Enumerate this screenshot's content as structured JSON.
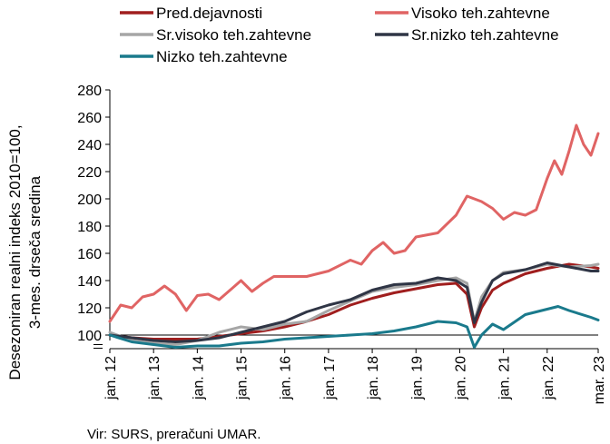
{
  "chart_data": {
    "type": "line",
    "ylabel_line1": "Desezoniran realni indeks 2010=100,",
    "ylabel_line2": "3-mes. drseča sredina",
    "source": "Vir: SURS, preračuni UMAR.",
    "ylim": [
      90,
      280
    ],
    "yticks": [
      "100",
      "120",
      "140",
      "160",
      "180",
      "200",
      "220",
      "240",
      "260",
      "280"
    ],
    "ytick_values": [
      100,
      120,
      140,
      160,
      180,
      200,
      220,
      240,
      260,
      280
    ],
    "xlim": [
      "2012-01",
      "2023-03"
    ],
    "xticks": [
      "jan. 12",
      "jan. 13",
      "jan. 14",
      "jan. 15",
      "jan. 16",
      "jan. 17",
      "jan. 18",
      "jan. 19",
      "jan. 20",
      "jan. 21",
      "jan. 22",
      "mar. 23"
    ],
    "xtick_dates": [
      "2012-01",
      "2013-01",
      "2014-01",
      "2015-01",
      "2016-01",
      "2017-01",
      "2018-01",
      "2019-01",
      "2020-01",
      "2021-01",
      "2022-01",
      "2023-03"
    ],
    "reference_line": 100,
    "axis_break": true,
    "series": [
      {
        "name": "Pred.dejavnosti",
        "color": "#a01e1e",
        "points": [
          [
            "2012-01",
            100
          ],
          [
            "2012-07",
            98
          ],
          [
            "2013-01",
            97
          ],
          [
            "2013-07",
            97
          ],
          [
            "2014-01",
            97
          ],
          [
            "2014-07",
            99
          ],
          [
            "2015-01",
            101
          ],
          [
            "2015-07",
            103
          ],
          [
            "2016-01",
            106
          ],
          [
            "2016-07",
            110
          ],
          [
            "2017-01",
            115
          ],
          [
            "2017-07",
            122
          ],
          [
            "2018-01",
            127
          ],
          [
            "2018-07",
            131
          ],
          [
            "2019-01",
            134
          ],
          [
            "2019-07",
            137
          ],
          [
            "2019-12",
            138
          ],
          [
            "2020-03",
            130
          ],
          [
            "2020-05",
            106
          ],
          [
            "2020-07",
            120
          ],
          [
            "2020-10",
            133
          ],
          [
            "2021-01",
            138
          ],
          [
            "2021-07",
            145
          ],
          [
            "2022-01",
            149
          ],
          [
            "2022-07",
            152
          ],
          [
            "2023-01",
            150
          ],
          [
            "2023-03",
            149
          ]
        ]
      },
      {
        "name": "Visoko teh.zahtevne",
        "color": "#e06464",
        "points": [
          [
            "2012-01",
            110
          ],
          [
            "2012-04",
            122
          ],
          [
            "2012-07",
            120
          ],
          [
            "2012-10",
            128
          ],
          [
            "2013-01",
            130
          ],
          [
            "2013-04",
            136
          ],
          [
            "2013-07",
            130
          ],
          [
            "2013-10",
            118
          ],
          [
            "2014-01",
            129
          ],
          [
            "2014-04",
            130
          ],
          [
            "2014-07",
            126
          ],
          [
            "2014-10",
            133
          ],
          [
            "2015-01",
            140
          ],
          [
            "2015-04",
            132
          ],
          [
            "2015-07",
            138
          ],
          [
            "2015-10",
            143
          ],
          [
            "2016-01",
            143
          ],
          [
            "2016-07",
            143
          ],
          [
            "2017-01",
            147
          ],
          [
            "2017-07",
            155
          ],
          [
            "2017-10",
            152
          ],
          [
            "2018-01",
            162
          ],
          [
            "2018-04",
            168
          ],
          [
            "2018-07",
            160
          ],
          [
            "2018-10",
            162
          ],
          [
            "2019-01",
            172
          ],
          [
            "2019-07",
            175
          ],
          [
            "2019-12",
            188
          ],
          [
            "2020-03",
            202
          ],
          [
            "2020-07",
            198
          ],
          [
            "2020-10",
            193
          ],
          [
            "2021-01",
            185
          ],
          [
            "2021-04",
            190
          ],
          [
            "2021-07",
            188
          ],
          [
            "2021-10",
            192
          ],
          [
            "2022-01",
            215
          ],
          [
            "2022-03",
            228
          ],
          [
            "2022-05",
            218
          ],
          [
            "2022-07",
            235
          ],
          [
            "2022-09",
            254
          ],
          [
            "2022-11",
            240
          ],
          [
            "2023-01",
            232
          ],
          [
            "2023-03",
            248
          ]
        ]
      },
      {
        "name": "Sr.visoko teh.zahtevne",
        "color": "#a6a6a6",
        "points": [
          [
            "2012-01",
            102
          ],
          [
            "2012-07",
            96
          ],
          [
            "2013-01",
            94
          ],
          [
            "2013-07",
            93
          ],
          [
            "2014-01",
            96
          ],
          [
            "2014-07",
            102
          ],
          [
            "2015-01",
            106
          ],
          [
            "2015-07",
            104
          ],
          [
            "2016-01",
            108
          ],
          [
            "2016-07",
            110
          ],
          [
            "2017-01",
            118
          ],
          [
            "2017-07",
            125
          ],
          [
            "2018-01",
            132
          ],
          [
            "2018-07",
            135
          ],
          [
            "2019-01",
            137
          ],
          [
            "2019-07",
            140
          ],
          [
            "2019-12",
            142
          ],
          [
            "2020-03",
            138
          ],
          [
            "2020-05",
            110
          ],
          [
            "2020-07",
            128
          ],
          [
            "2020-10",
            140
          ],
          [
            "2021-01",
            146
          ],
          [
            "2021-07",
            148
          ],
          [
            "2022-01",
            152
          ],
          [
            "2022-07",
            150
          ],
          [
            "2023-01",
            151
          ],
          [
            "2023-03",
            152
          ]
        ]
      },
      {
        "name": "Sr.nizko teh.zahtevne",
        "color": "#2f3545",
        "points": [
          [
            "2012-01",
            100
          ],
          [
            "2012-07",
            98
          ],
          [
            "2013-01",
            96
          ],
          [
            "2013-07",
            95
          ],
          [
            "2014-01",
            96
          ],
          [
            "2014-07",
            98
          ],
          [
            "2015-01",
            102
          ],
          [
            "2015-07",
            106
          ],
          [
            "2016-01",
            110
          ],
          [
            "2016-07",
            117
          ],
          [
            "2017-01",
            122
          ],
          [
            "2017-07",
            126
          ],
          [
            "2018-01",
            133
          ],
          [
            "2018-07",
            137
          ],
          [
            "2019-01",
            138
          ],
          [
            "2019-07",
            142
          ],
          [
            "2019-12",
            140
          ],
          [
            "2020-03",
            135
          ],
          [
            "2020-05",
            109
          ],
          [
            "2020-07",
            124
          ],
          [
            "2020-10",
            140
          ],
          [
            "2021-01",
            145
          ],
          [
            "2021-07",
            148
          ],
          [
            "2022-01",
            153
          ],
          [
            "2022-07",
            150
          ],
          [
            "2023-01",
            147
          ],
          [
            "2023-03",
            147
          ]
        ]
      },
      {
        "name": "Nizko teh.zahtevne",
        "color": "#1a7a8c",
        "points": [
          [
            "2012-01",
            100
          ],
          [
            "2012-07",
            95
          ],
          [
            "2013-01",
            93
          ],
          [
            "2013-07",
            91
          ],
          [
            "2014-01",
            92
          ],
          [
            "2014-07",
            92
          ],
          [
            "2015-01",
            94
          ],
          [
            "2015-07",
            95
          ],
          [
            "2016-01",
            97
          ],
          [
            "2016-07",
            98
          ],
          [
            "2017-01",
            99
          ],
          [
            "2017-07",
            100
          ],
          [
            "2018-01",
            101
          ],
          [
            "2018-07",
            103
          ],
          [
            "2019-01",
            106
          ],
          [
            "2019-07",
            110
          ],
          [
            "2019-12",
            109
          ],
          [
            "2020-03",
            106
          ],
          [
            "2020-05",
            91
          ],
          [
            "2020-07",
            100
          ],
          [
            "2020-10",
            108
          ],
          [
            "2021-01",
            104
          ],
          [
            "2021-07",
            115
          ],
          [
            "2022-01",
            119
          ],
          [
            "2022-04",
            121
          ],
          [
            "2022-07",
            118
          ],
          [
            "2023-01",
            113
          ],
          [
            "2023-03",
            111
          ]
        ]
      }
    ]
  }
}
